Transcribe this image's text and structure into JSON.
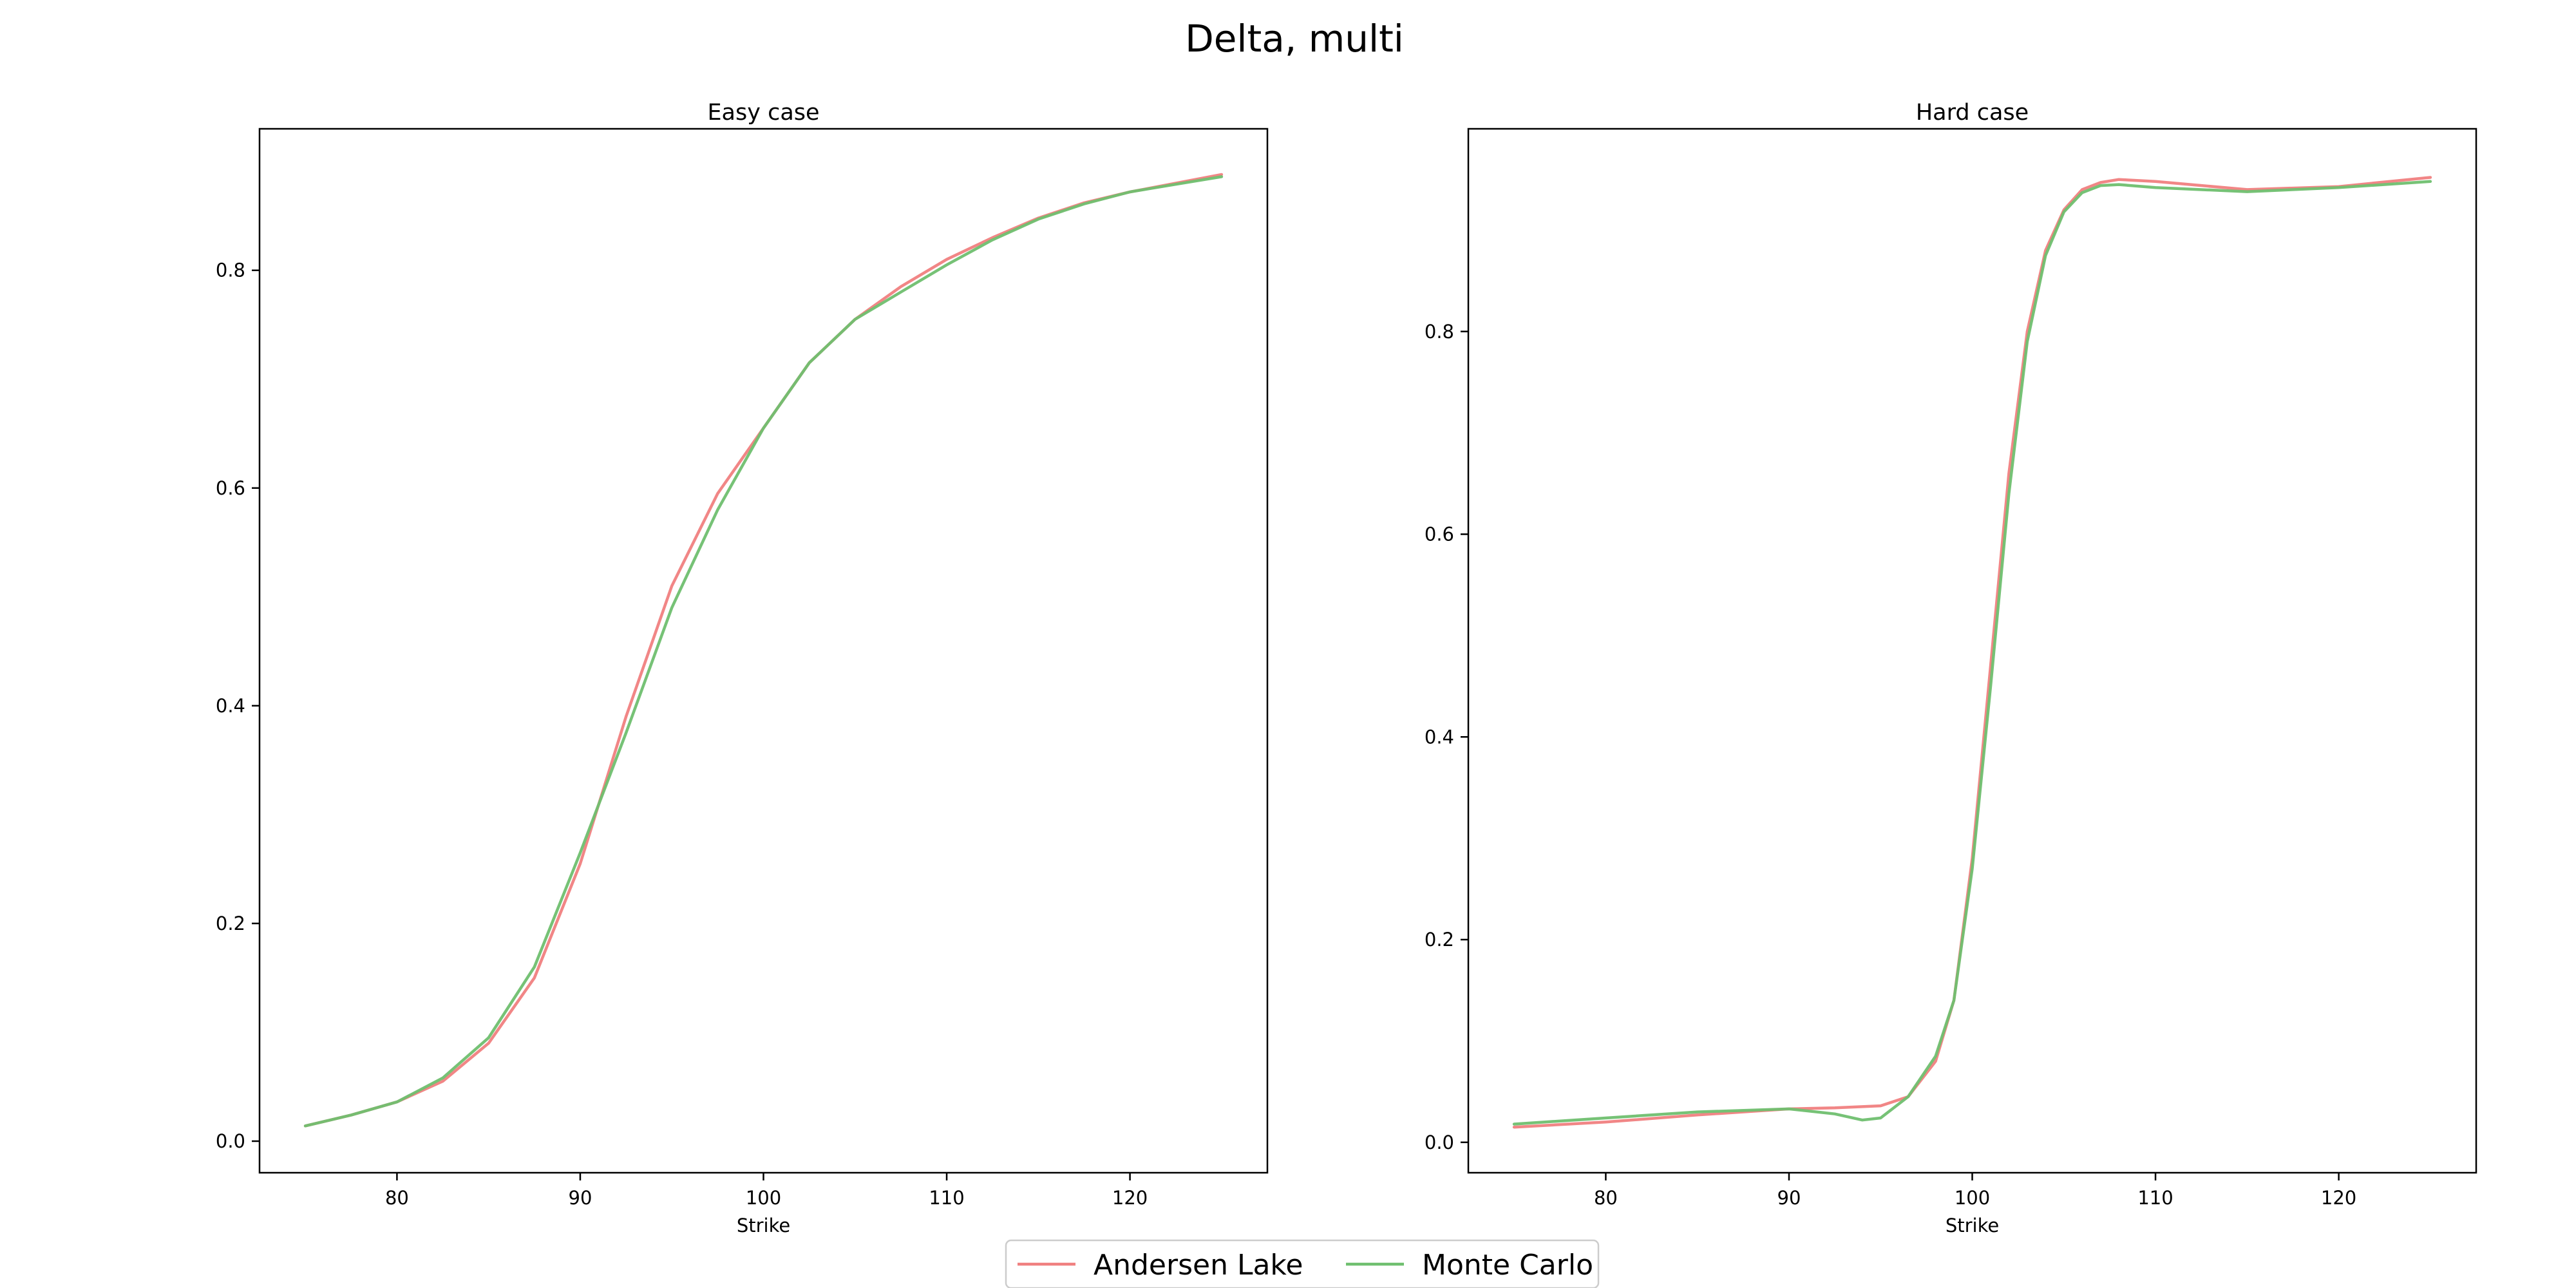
{
  "figure": {
    "title": "Delta, multi",
    "legend": {
      "placement": "bottom-center",
      "entries": [
        {
          "label": "Andersen Lake",
          "color": "#f08080"
        },
        {
          "label": "Monte Carlo",
          "color": "#6fbf6f"
        }
      ]
    }
  },
  "chart_data": [
    {
      "type": "line",
      "title": "Easy case",
      "xlabel": "Strike",
      "ylabel": "",
      "xlim": [
        72.5,
        127.5
      ],
      "ylim": [
        -0.029,
        0.93
      ],
      "xticks": [
        80,
        90,
        100,
        110,
        120
      ],
      "yticks": [
        0.0,
        0.2,
        0.4,
        0.6,
        0.8
      ],
      "ytick_labels": [
        "0.0",
        "0.2",
        "0.4",
        "0.6",
        "0.8"
      ],
      "grid": false,
      "series": [
        {
          "name": "Andersen Lake",
          "color": "#f08080",
          "x": [
            75,
            77.5,
            80,
            82.5,
            85,
            87.5,
            90,
            92.5,
            95,
            97.5,
            100,
            102.5,
            105,
            107.5,
            110,
            112.5,
            115,
            117.5,
            120,
            122.5,
            125
          ],
          "y": [
            0.014,
            0.024,
            0.036,
            0.055,
            0.09,
            0.15,
            0.255,
            0.39,
            0.51,
            0.595,
            0.655,
            0.715,
            0.755,
            0.785,
            0.81,
            0.83,
            0.848,
            0.862,
            0.872,
            0.88,
            0.888
          ]
        },
        {
          "name": "Monte Carlo",
          "color": "#6fbf6f",
          "x": [
            75,
            77.5,
            80,
            82.5,
            85,
            87.5,
            90,
            92.5,
            95,
            97.5,
            100,
            102.5,
            105,
            107.5,
            110,
            112.5,
            115,
            117.5,
            120,
            122.5,
            125
          ],
          "y": [
            0.014,
            0.024,
            0.036,
            0.058,
            0.095,
            0.16,
            0.265,
            0.375,
            0.49,
            0.58,
            0.655,
            0.715,
            0.755,
            0.78,
            0.805,
            0.828,
            0.847,
            0.861,
            0.872,
            0.879,
            0.886
          ]
        }
      ]
    },
    {
      "type": "line",
      "title": "Hard case",
      "xlabel": "Strike",
      "ylabel": "",
      "xlim": [
        72.5,
        127.5
      ],
      "ylim": [
        -0.03,
        1.0
      ],
      "xticks": [
        80,
        90,
        100,
        110,
        120
      ],
      "yticks": [
        0.0,
        0.2,
        0.4,
        0.6,
        0.8
      ],
      "ytick_labels": [
        "0.0",
        "0.2",
        "0.4",
        "0.6",
        "0.8"
      ],
      "grid": false,
      "series": [
        {
          "name": "Andersen Lake",
          "color": "#f08080",
          "x": [
            75,
            80,
            85,
            90,
            92.5,
            95,
            96.5,
            98,
            99,
            100,
            101,
            102,
            103,
            104,
            105,
            106,
            107,
            108,
            110,
            115,
            120,
            125
          ],
          "y": [
            0.015,
            0.02,
            0.027,
            0.033,
            0.034,
            0.036,
            0.045,
            0.08,
            0.14,
            0.28,
            0.47,
            0.66,
            0.8,
            0.88,
            0.92,
            0.94,
            0.947,
            0.95,
            0.948,
            0.94,
            0.943,
            0.952
          ]
        },
        {
          "name": "Monte Carlo",
          "color": "#6fbf6f",
          "x": [
            75,
            80,
            85,
            90,
            92.5,
            94,
            95,
            96.5,
            98,
            99,
            100,
            101,
            102,
            103,
            104,
            105,
            106,
            107,
            108,
            110,
            115,
            120,
            125
          ],
          "y": [
            0.018,
            0.024,
            0.03,
            0.033,
            0.028,
            0.022,
            0.024,
            0.045,
            0.085,
            0.14,
            0.27,
            0.45,
            0.64,
            0.79,
            0.875,
            0.918,
            0.937,
            0.944,
            0.945,
            0.942,
            0.938,
            0.942,
            0.948
          ]
        }
      ]
    }
  ]
}
